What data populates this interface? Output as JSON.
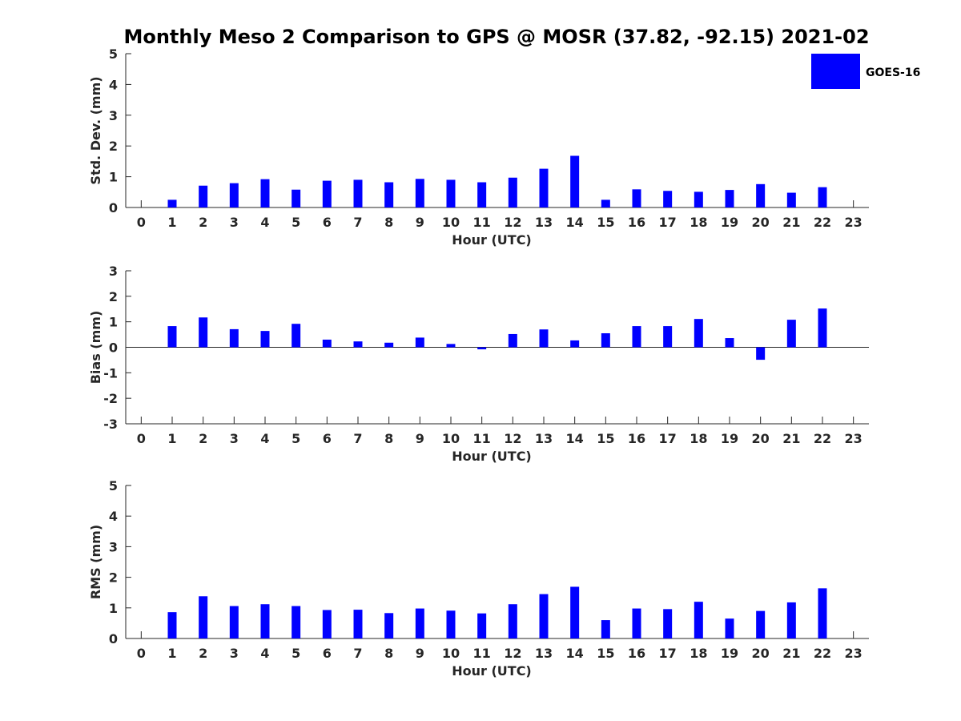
{
  "figure": {
    "title": "Monthly Meso 2 Comparison to GPS @ MOSR (37.82, -92.15) 2021-02",
    "legend": {
      "label": "GOES-16",
      "placement": "top-right"
    },
    "colors": {
      "bar": "#0000ff",
      "axis": "#262626",
      "background": "#ffffff"
    }
  },
  "chart_data": [
    {
      "type": "bar",
      "xlabel": "Hour (UTC)",
      "ylabel": "Std. Dev. (mm)",
      "xlim": [
        -0.5,
        23.5
      ],
      "ylim": [
        0,
        5
      ],
      "yticks": [
        0,
        1,
        2,
        3,
        4,
        5
      ],
      "categories": [
        "0",
        "1",
        "2",
        "3",
        "4",
        "5",
        "6",
        "7",
        "8",
        "9",
        "10",
        "11",
        "12",
        "13",
        "14",
        "15",
        "16",
        "17",
        "18",
        "19",
        "20",
        "21",
        "22",
        "23"
      ],
      "series": [
        {
          "name": "GOES-16",
          "values": [
            null,
            0.25,
            0.71,
            0.79,
            0.92,
            0.58,
            0.87,
            0.9,
            0.82,
            0.93,
            0.9,
            0.82,
            0.97,
            1.26,
            1.68,
            0.25,
            0.59,
            0.54,
            0.51,
            0.57,
            0.76,
            0.48,
            0.66,
            null
          ]
        }
      ],
      "grid": false
    },
    {
      "type": "bar",
      "xlabel": "Hour (UTC)",
      "ylabel": "Bias (mm)",
      "xlim": [
        -0.5,
        23.5
      ],
      "ylim": [
        -3,
        3
      ],
      "yticks": [
        -3,
        -2,
        -1,
        0,
        1,
        2,
        3
      ],
      "categories": [
        "0",
        "1",
        "2",
        "3",
        "4",
        "5",
        "6",
        "7",
        "8",
        "9",
        "10",
        "11",
        "12",
        "13",
        "14",
        "15",
        "16",
        "17",
        "18",
        "19",
        "20",
        "21",
        "22",
        "23"
      ],
      "series": [
        {
          "name": "GOES-16",
          "values": [
            null,
            0.83,
            1.17,
            0.71,
            0.64,
            0.92,
            0.3,
            0.23,
            0.18,
            0.38,
            0.13,
            -0.08,
            0.52,
            0.7,
            0.27,
            0.55,
            0.83,
            0.83,
            1.11,
            0.36,
            -0.49,
            1.08,
            1.52,
            null
          ]
        }
      ],
      "grid": false
    },
    {
      "type": "bar",
      "xlabel": "Hour (UTC)",
      "ylabel": "RMS (mm)",
      "xlim": [
        -0.5,
        23.5
      ],
      "ylim": [
        0,
        5
      ],
      "yticks": [
        0,
        1,
        2,
        3,
        4,
        5
      ],
      "categories": [
        "0",
        "1",
        "2",
        "3",
        "4",
        "5",
        "6",
        "7",
        "8",
        "9",
        "10",
        "11",
        "12",
        "13",
        "14",
        "15",
        "16",
        "17",
        "18",
        "19",
        "20",
        "21",
        "22",
        "23"
      ],
      "series": [
        {
          "name": "GOES-16",
          "values": [
            null,
            0.86,
            1.38,
            1.06,
            1.12,
            1.06,
            0.93,
            0.94,
            0.83,
            0.98,
            0.91,
            0.82,
            1.12,
            1.45,
            1.69,
            0.6,
            0.98,
            0.96,
            1.2,
            0.65,
            0.9,
            1.18,
            1.64,
            null
          ]
        }
      ],
      "grid": false
    }
  ]
}
